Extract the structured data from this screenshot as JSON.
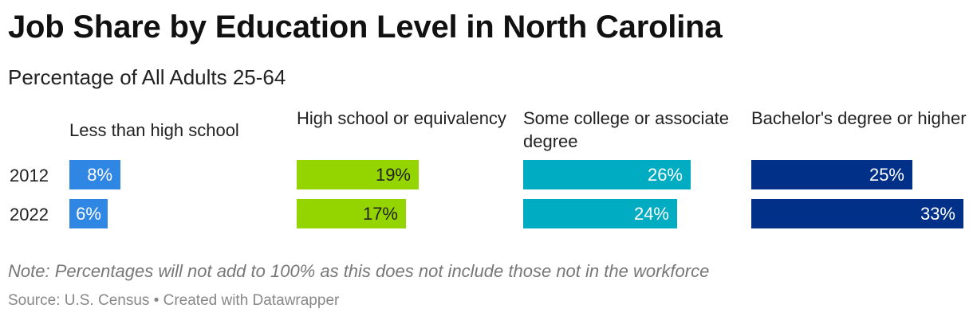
{
  "chart_data": {
    "type": "bar",
    "title": "Job Share by Education Level in North Carolina",
    "subtitle": "Percentage of All Adults 25-64",
    "categories": [
      "Less than high school",
      "High school or equivalency",
      "Some college or associate degree",
      "Bachelor's degree or higher"
    ],
    "rows": [
      "2012",
      "2022"
    ],
    "series": [
      {
        "name": "2012",
        "values": [
          8,
          19,
          26,
          25
        ],
        "labels": [
          "8%",
          "19%",
          "26%",
          "25%"
        ]
      },
      {
        "name": "2022",
        "values": [
          6,
          17,
          24,
          33
        ],
        "labels": [
          "6%",
          "17%",
          "24%",
          "33%"
        ]
      }
    ],
    "colors": [
      "#2f86e3",
      "#94d500",
      "#00acc1",
      "#003087"
    ],
    "label_colors": [
      "#ffffff",
      "#222222",
      "#ffffff",
      "#ffffff"
    ],
    "scale_max": 33,
    "note": "Note: Percentages will not add to 100% as this does not include those not in the workforce",
    "source": "Source: U.S. Census • Created with Datawrapper"
  }
}
